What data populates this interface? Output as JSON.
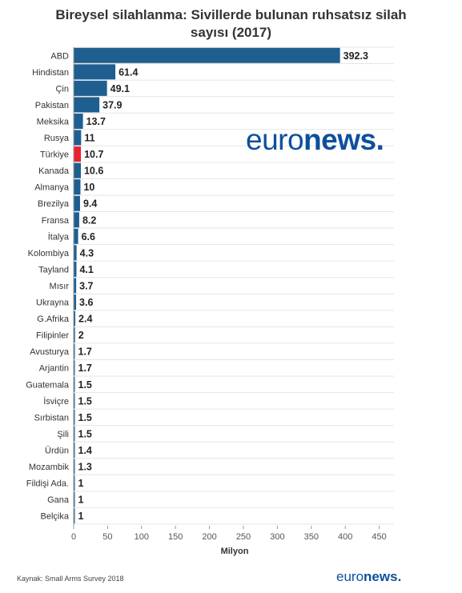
{
  "title_line1": "Bireysel silahlanma: Sivillerde bulunan ruhsatsız silah",
  "title_line2": "sayısı (2017)",
  "source": "Kaynak: Small Arms Survey 2018",
  "logo": {
    "thin": "euro",
    "bold": "news",
    "dot": "."
  },
  "colors": {
    "bar": "#1f5f8f",
    "highlight": "#e8242c",
    "grid": "#e6e6e6"
  },
  "chart_data": {
    "type": "bar",
    "orientation": "horizontal",
    "title": "Bireysel silahlanma: Sivillerde bulunan ruhsatsız silah sayısı (2017)",
    "xlabel": "Milyon",
    "ylabel": "",
    "xlim": [
      0,
      450
    ],
    "xticks": [
      "0",
      "50",
      "100",
      "150",
      "200",
      "250",
      "300",
      "350",
      "400",
      "450"
    ],
    "grid": true,
    "highlight_category": "Türkiye",
    "categories": [
      "ABD",
      "Hindistan",
      "Çin",
      "Pakistan",
      "Meksika",
      "Rusya",
      "Türkiye",
      "Kanada",
      "Almanya",
      "Brezilya",
      "Fransa",
      "İtalya",
      "Kolombiya",
      "Tayland",
      "Mısır",
      "Ukrayna",
      "G.Afrika",
      "Filipinler",
      "Avusturya",
      "Arjantin",
      "Guatemala",
      "İsviçre",
      "Sırbistan",
      "Şili",
      "Ürdün",
      "Mozambik",
      "Fildişi Ada.",
      "Gana",
      "Belçika"
    ],
    "values": [
      392.3,
      61.4,
      49.1,
      37.9,
      13.7,
      11,
      10.7,
      10.6,
      10,
      9.4,
      8.2,
      6.6,
      4.3,
      4.1,
      3.7,
      3.6,
      2.4,
      2,
      1.7,
      1.7,
      1.5,
      1.5,
      1.5,
      1.5,
      1.4,
      1.3,
      1,
      1,
      1
    ],
    "value_labels": [
      "392.3",
      "61.4",
      "49.1",
      "37.9",
      "13.7",
      "11",
      "10.7",
      "10.6",
      "10",
      "9.4",
      "8.2",
      "6.6",
      "4.3",
      "4.1",
      "3.7",
      "3.6",
      "2.4",
      "2",
      "1.7",
      "1.7",
      "1.5",
      "1.5",
      "1.5",
      "1.5",
      "1.4",
      "1.3",
      "1",
      "1",
      "1"
    ]
  }
}
